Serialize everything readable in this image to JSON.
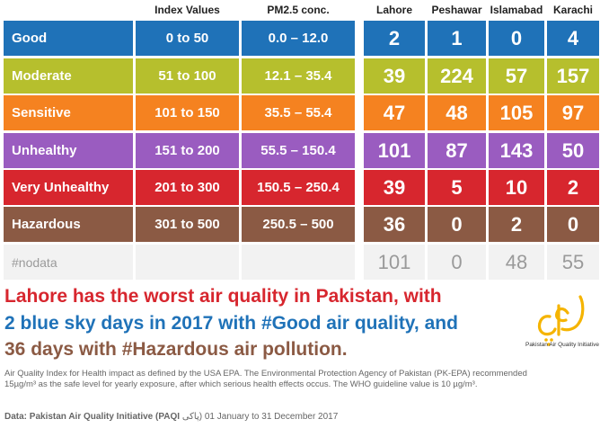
{
  "headers": {
    "index_values": "Index Values",
    "pm25": "PM2.5 conc.",
    "lahore": "Lahore",
    "peshawar": "Peshawar",
    "islamabad": "Islamabad",
    "karachi": "Karachi"
  },
  "rows": [
    {
      "label": "Good",
      "index": "0 to 50",
      "pm": "0.0 – 12.0",
      "lahore": "2",
      "peshawar": "1",
      "islamabad": "0",
      "karachi": "4",
      "color": "#1f72b8"
    },
    {
      "label": "Moderate",
      "index": "51 to 100",
      "pm": "12.1 – 35.4",
      "lahore": "39",
      "peshawar": "224",
      "islamabad": "57",
      "karachi": "157",
      "color": "#b6bf2d"
    },
    {
      "label": "Sensitive",
      "index": "101 to 150",
      "pm": "35.5 – 55.4",
      "lahore": "47",
      "peshawar": "48",
      "islamabad": "105",
      "karachi": "97",
      "color": "#f58220"
    },
    {
      "label": "Unhealthy",
      "index": "151 to 200",
      "pm": "55.5 – 150.4",
      "lahore": "101",
      "peshawar": "87",
      "islamabad": "143",
      "karachi": "50",
      "color": "#9a5cc0"
    },
    {
      "label": "Very Unhealthy",
      "index": "201 to 300",
      "pm": "150.5 – 250.4",
      "lahore": "39",
      "peshawar": "5",
      "islamabad": "10",
      "karachi": "2",
      "color": "#d7262e"
    },
    {
      "label": "Hazardous",
      "index": "301 to 500",
      "pm": "250.5 – 500",
      "lahore": "36",
      "peshawar": "0",
      "islamabad": "2",
      "karachi": "0",
      "color": "#8b5a44"
    }
  ],
  "nodata": {
    "label": "#nodata",
    "lahore": "101",
    "peshawar": "0",
    "islamabad": "48",
    "karachi": "55"
  },
  "headline": {
    "line1": "Lahore has the worst air quality in Pakistan, with",
    "line2": "2 blue sky days in 2017 with #Good air quality, and",
    "line3": "36 days with #Hazardous air pollution.",
    "color1": "#d7262e",
    "color2": "#1f72b8",
    "color3": "#8b5a44"
  },
  "footnote": "Air Quality Index for Health impact as defined by the USA EPA. The Environmental Protection Agency of Pakistan (PK-EPA) recommended 15µg/m³ as the safe level for yearly exposure, after which serious health effects occus. The WHO guideline value is 10 µg/m³.",
  "source": {
    "prefix": "Data: Pakistan Air Quality Initiative (PAQI ",
    "urdu": "پاکی",
    "suffix": ") 01 January to 31 December 2017"
  },
  "logo": {
    "caption": "Pakistan Air Quality Initiative",
    "color": "#f5b400"
  }
}
